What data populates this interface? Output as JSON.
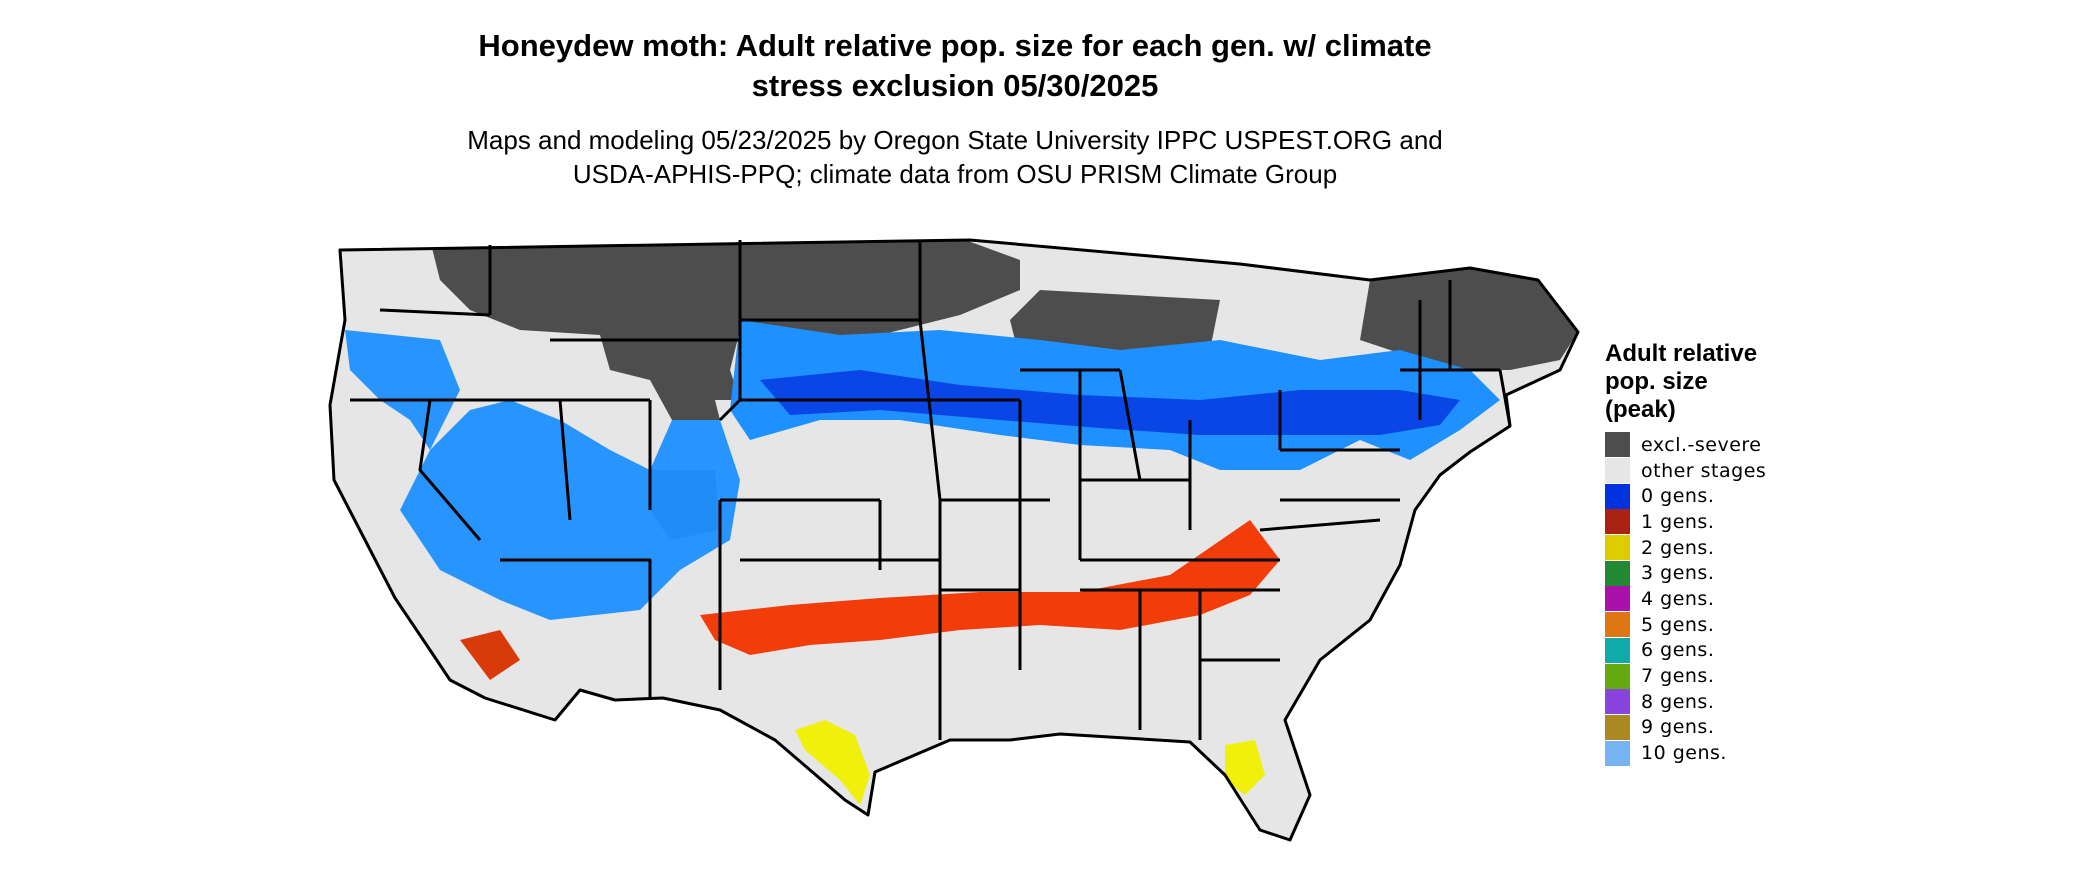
{
  "map": {
    "title_line1": "Honeydew moth: Adult relative pop. size for each gen. w/ climate",
    "title_line2": "stress exclusion 05/30/2025",
    "subtitle_line1": "Maps and modeling 05/23/2025 by Oregon State University IPPC USPEST.ORG and",
    "subtitle_line2": "USDA-APHIS-PPQ; climate data from OSU PRISM Climate Group",
    "region": "Contiguous United States",
    "colors": {
      "excluded": "#4d4d4d",
      "other_stages": "#e6e6e6",
      "blue_zone": "#1e90ff",
      "dark_blue_zone": "#0a46e6",
      "red_zone": "#f23c0a",
      "yellow_zone": "#f0f00a",
      "green_zone": "#2a8a2a",
      "state_border": "#000000"
    }
  },
  "legend": {
    "title_line1": "Adult relative",
    "title_line2": "pop. size",
    "title_line3": "(peak)",
    "items": [
      {
        "label": "excl.-severe",
        "color": "#4d4d4d"
      },
      {
        "label": "other stages",
        "color": "#e6e6e6"
      },
      {
        "label": "0 gens.",
        "color": "#0033dd"
      },
      {
        "label": "1 gens.",
        "color": "#aa2211"
      },
      {
        "label": "2 gens.",
        "color": "#ddcc00"
      },
      {
        "label": "3 gens.",
        "color": "#228833"
      },
      {
        "label": "4 gens.",
        "color": "#aa11aa"
      },
      {
        "label": "5 gens.",
        "color": "#dd7711"
      },
      {
        "label": "6 gens.",
        "color": "#11aaaa"
      },
      {
        "label": "7 gens.",
        "color": "#66aa11"
      },
      {
        "label": "8 gens.",
        "color": "#8844dd"
      },
      {
        "label": "9 gens.",
        "color": "#aa8822"
      },
      {
        "label": "10 gens.",
        "color": "#77b3f0"
      }
    ]
  }
}
